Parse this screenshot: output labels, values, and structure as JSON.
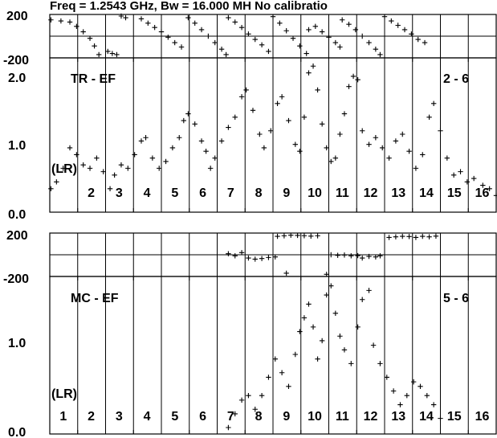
{
  "title": "Freq = 1.2543 GHz, Bw = 16.000 MH   No calibratio",
  "chart_data": {
    "type": "scatter",
    "channels": [
      "1",
      "2",
      "3",
      "4",
      "5",
      "6",
      "7",
      "8",
      "9",
      "10",
      "11",
      "12",
      "13",
      "14",
      "15",
      "16"
    ],
    "panels": [
      {
        "name": "TR-EF",
        "label": "TR - EF",
        "baseline": "2 - 6",
        "ylabel": "(LR)",
        "phase_ticks": [
          "200",
          "-200"
        ],
        "amp_ticks": [
          "2.0",
          "1.0",
          "0.0"
        ],
        "phase_range": [
          -200,
          200
        ],
        "amp_range": [
          0,
          2.1
        ],
        "phase": [
          [
            0.05,
            150
          ],
          [
            0.5,
            140
          ],
          [
            0.9,
            130
          ],
          [
            1.2,
            90
          ],
          [
            1.5,
            40
          ],
          [
            1.8,
            -20
          ],
          [
            2.0,
            -90
          ],
          [
            2.2,
            -170
          ],
          [
            2.6,
            -140
          ],
          [
            2.8,
            -160
          ],
          [
            3.0,
            -170
          ],
          [
            3.2,
            190
          ],
          [
            3.4,
            170
          ],
          [
            4.1,
            160
          ],
          [
            4.4,
            120
          ],
          [
            4.7,
            80
          ],
          [
            5.0,
            40
          ],
          [
            5.3,
            -10
          ],
          [
            5.6,
            -60
          ],
          [
            5.9,
            -100
          ],
          [
            6.2,
            170
          ],
          [
            6.5,
            120
          ],
          [
            6.8,
            60
          ],
          [
            7.1,
            0
          ],
          [
            7.4,
            -60
          ],
          [
            7.7,
            -120
          ],
          [
            7.9,
            -170
          ],
          [
            8.0,
            170
          ],
          [
            8.3,
            130
          ],
          [
            8.6,
            80
          ],
          [
            8.9,
            20
          ],
          [
            9.2,
            -30
          ],
          [
            9.5,
            -80
          ],
          [
            9.8,
            -140
          ],
          [
            10.0,
            180
          ],
          [
            10.3,
            120
          ],
          [
            10.6,
            50
          ],
          [
            10.9,
            -20
          ],
          [
            11.2,
            -90
          ],
          [
            11.5,
            -160
          ],
          [
            11.6,
            60
          ],
          [
            11.9,
            90
          ],
          [
            12.2,
            40
          ],
          [
            12.5,
            -10
          ],
          [
            12.8,
            -60
          ],
          [
            13.0,
            -100
          ],
          [
            13.1,
            150
          ],
          [
            13.4,
            110
          ],
          [
            13.7,
            60
          ],
          [
            14.0,
            0
          ],
          [
            14.3,
            -60
          ],
          [
            14.6,
            -120
          ],
          [
            14.8,
            -170
          ],
          [
            15.0,
            180
          ],
          [
            15.3,
            140
          ],
          [
            15.6,
            100
          ],
          [
            15.9,
            60
          ],
          [
            16.2,
            20
          ],
          [
            16.5,
            -30
          ],
          [
            16.8,
            -60
          ]
        ],
        "amp": [
          [
            0.05,
            0.25
          ],
          [
            0.3,
            0.35
          ],
          [
            0.6,
            0.55
          ],
          [
            0.9,
            0.85
          ],
          [
            1.2,
            0.75
          ],
          [
            1.5,
            0.6
          ],
          [
            1.8,
            0.55
          ],
          [
            2.1,
            0.7
          ],
          [
            2.4,
            0.5
          ],
          [
            2.7,
            0.25
          ],
          [
            2.9,
            0.45
          ],
          [
            3.2,
            0.6
          ],
          [
            3.5,
            0.55
          ],
          [
            3.8,
            0.75
          ],
          [
            4.1,
            0.95
          ],
          [
            4.3,
            1.0
          ],
          [
            4.6,
            0.7
          ],
          [
            4.9,
            0.55
          ],
          [
            5.2,
            0.65
          ],
          [
            5.5,
            0.85
          ],
          [
            5.8,
            1.0
          ],
          [
            6.0,
            1.25
          ],
          [
            6.2,
            1.35
          ],
          [
            6.5,
            1.2
          ],
          [
            6.8,
            0.95
          ],
          [
            7.0,
            0.8
          ],
          [
            7.2,
            0.55
          ],
          [
            7.4,
            0.7
          ],
          [
            7.7,
            0.95
          ],
          [
            8.0,
            1.15
          ],
          [
            8.3,
            1.3
          ],
          [
            8.6,
            1.6
          ],
          [
            8.8,
            1.7
          ],
          [
            9.1,
            1.4
          ],
          [
            9.4,
            1.05
          ],
          [
            9.6,
            0.85
          ],
          [
            9.9,
            1.1
          ],
          [
            10.2,
            1.5
          ],
          [
            10.4,
            1.6
          ],
          [
            10.7,
            1.25
          ],
          [
            11.0,
            0.9
          ],
          [
            11.2,
            0.8
          ],
          [
            11.4,
            1.3
          ],
          [
            11.6,
            1.95
          ],
          [
            11.8,
            2.05
          ],
          [
            12.0,
            1.7
          ],
          [
            12.2,
            1.2
          ],
          [
            12.4,
            0.85
          ],
          [
            12.6,
            0.65
          ],
          [
            12.8,
            0.7
          ],
          [
            13.0,
            1.05
          ],
          [
            13.2,
            1.35
          ],
          [
            13.4,
            1.75
          ],
          [
            13.6,
            1.9
          ],
          [
            13.8,
            1.85
          ],
          [
            14.0,
            1.1
          ],
          [
            14.3,
            0.9
          ],
          [
            14.6,
            1.0
          ],
          [
            14.9,
            0.85
          ],
          [
            15.2,
            0.7
          ],
          [
            15.5,
            0.95
          ],
          [
            15.8,
            1.05
          ],
          [
            16.1,
            0.8
          ],
          [
            16.4,
            0.55
          ],
          [
            16.7,
            0.75
          ],
          [
            17.0,
            1.3
          ],
          [
            17.2,
            1.5
          ],
          [
            17.5,
            1.1
          ],
          [
            17.8,
            0.7
          ],
          [
            18.1,
            0.45
          ],
          [
            18.4,
            0.5
          ],
          [
            18.7,
            0.35
          ],
          [
            19.0,
            0.4
          ],
          [
            19.4,
            0.3
          ],
          [
            19.7,
            0.25
          ],
          [
            20.0,
            0.15
          ]
        ]
      },
      {
        "name": "MC-EF",
        "label": "MC - EF",
        "baseline": "5 - 6",
        "ylabel": "(LR)",
        "phase_ticks": [
          "200",
          "-200"
        ],
        "amp_ticks": [
          "1.0",
          "0.0"
        ],
        "phase_range": [
          -200,
          200
        ],
        "amp_range": [
          0,
          1.6
        ],
        "phase": [
          [
            8.0,
            10
          ],
          [
            8.3,
            -10
          ],
          [
            8.6,
            20
          ],
          [
            8.9,
            -30
          ],
          [
            9.2,
            -40
          ],
          [
            9.5,
            -35
          ],
          [
            9.8,
            -25
          ],
          [
            10.1,
            -20
          ],
          [
            10.2,
            170
          ],
          [
            10.5,
            175
          ],
          [
            10.8,
            180
          ],
          [
            11.1,
            178
          ],
          [
            11.4,
            176
          ],
          [
            11.7,
            172
          ],
          [
            12.0,
            175
          ],
          [
            10.6,
            -170
          ],
          [
            12.4,
            -180
          ],
          [
            12.6,
            0
          ],
          [
            12.9,
            -5
          ],
          [
            13.2,
            -2
          ],
          [
            13.5,
            -10
          ],
          [
            13.8,
            -8
          ],
          [
            14.0,
            -30
          ],
          [
            14.3,
            -15
          ],
          [
            14.6,
            -20
          ],
          [
            14.8,
            -10
          ],
          [
            15.2,
            160
          ],
          [
            15.5,
            165
          ],
          [
            15.8,
            170
          ],
          [
            16.1,
            168
          ],
          [
            16.4,
            160
          ],
          [
            16.7,
            170
          ],
          [
            17.0,
            165
          ],
          [
            17.3,
            172
          ]
        ],
        "amp": [
          [
            8.0,
            0.0
          ],
          [
            8.3,
            0.15
          ],
          [
            8.6,
            0.3
          ],
          [
            8.9,
            0.35
          ],
          [
            9.2,
            0.2
          ],
          [
            9.5,
            0.35
          ],
          [
            9.8,
            0.55
          ],
          [
            10.1,
            0.75
          ],
          [
            10.4,
            0.6
          ],
          [
            10.7,
            0.45
          ],
          [
            11.0,
            0.8
          ],
          [
            11.2,
            1.05
          ],
          [
            11.4,
            1.2
          ],
          [
            11.6,
            1.35
          ],
          [
            11.8,
            1.1
          ],
          [
            12.0,
            0.75
          ],
          [
            12.2,
            0.95
          ],
          [
            12.4,
            1.45
          ],
          [
            12.6,
            1.55
          ],
          [
            12.8,
            1.25
          ],
          [
            13.0,
            1.0
          ],
          [
            13.2,
            0.85
          ],
          [
            13.5,
            0.7
          ],
          [
            13.8,
            1.1
          ],
          [
            14.0,
            1.4
          ],
          [
            14.3,
            1.5
          ],
          [
            14.5,
            0.9
          ],
          [
            14.8,
            0.7
          ],
          [
            15.1,
            0.55
          ],
          [
            15.4,
            0.4
          ],
          [
            15.7,
            0.25
          ],
          [
            16.0,
            0.35
          ],
          [
            16.3,
            0.5
          ],
          [
            16.6,
            0.45
          ],
          [
            16.9,
            0.35
          ],
          [
            17.2,
            0.25
          ],
          [
            17.5,
            0.1
          ]
        ]
      }
    ]
  }
}
